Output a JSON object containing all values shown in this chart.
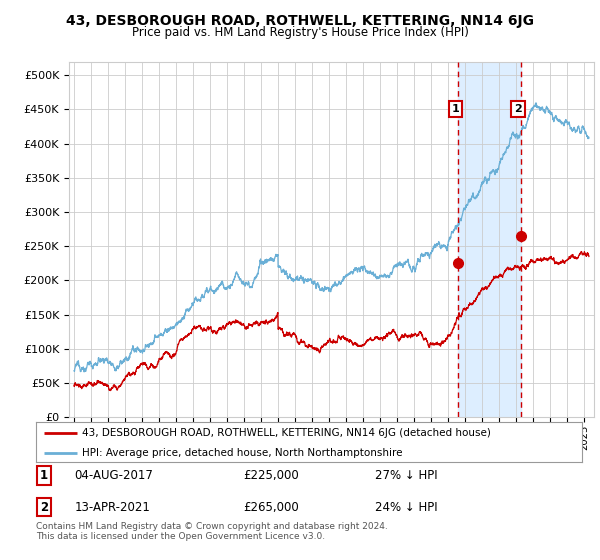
{
  "title": "43, DESBOROUGH ROAD, ROTHWELL, KETTERING, NN14 6JG",
  "subtitle": "Price paid vs. HM Land Registry's House Price Index (HPI)",
  "title_fontsize": 10,
  "subtitle_fontsize": 8.5,
  "ylabel_ticks": [
    "£0",
    "£50K",
    "£100K",
    "£150K",
    "£200K",
    "£250K",
    "£300K",
    "£350K",
    "£400K",
    "£450K",
    "£500K"
  ],
  "ytick_values": [
    0,
    50000,
    100000,
    150000,
    200000,
    250000,
    300000,
    350000,
    400000,
    450000,
    500000
  ],
  "ylim": [
    0,
    520000
  ],
  "hpi_color": "#6aafd6",
  "price_color": "#cc0000",
  "marker1_date": 2017.58,
  "marker1_price": 225000,
  "marker2_date": 2021.28,
  "marker2_price": 265000,
  "legend_line1": "43, DESBOROUGH ROAD, ROTHWELL, KETTERING, NN14 6JG (detached house)",
  "legend_line2": "HPI: Average price, detached house, North Northamptonshire",
  "footer1": "Contains HM Land Registry data © Crown copyright and database right 2024.",
  "footer2": "This data is licensed under the Open Government Licence v3.0.",
  "plot_bg_color": "#ffffff",
  "shade_color": "#ddeeff",
  "grid_color": "#cccccc",
  "fig_bg_color": "#ffffff"
}
